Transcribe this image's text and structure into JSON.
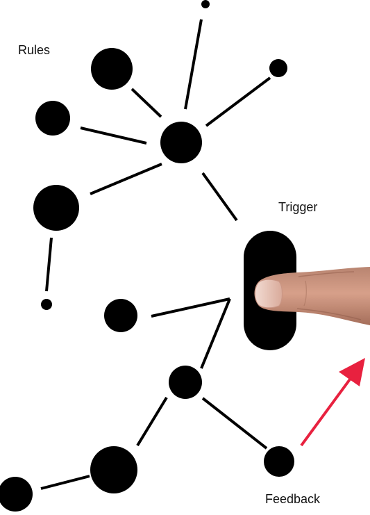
{
  "labels": {
    "rules": "Rules",
    "trigger": "Trigger",
    "feedback": "Feedback"
  },
  "colors": {
    "node": "#000000",
    "edge": "#000000",
    "arrow": "#e8213f",
    "background": "#ffffff",
    "skin": "#c8907a",
    "nail": "#e8c8bc"
  },
  "icons": {
    "trigger": "finger-pressing-button-icon",
    "feedback": "up-right-arrow-icon"
  }
}
